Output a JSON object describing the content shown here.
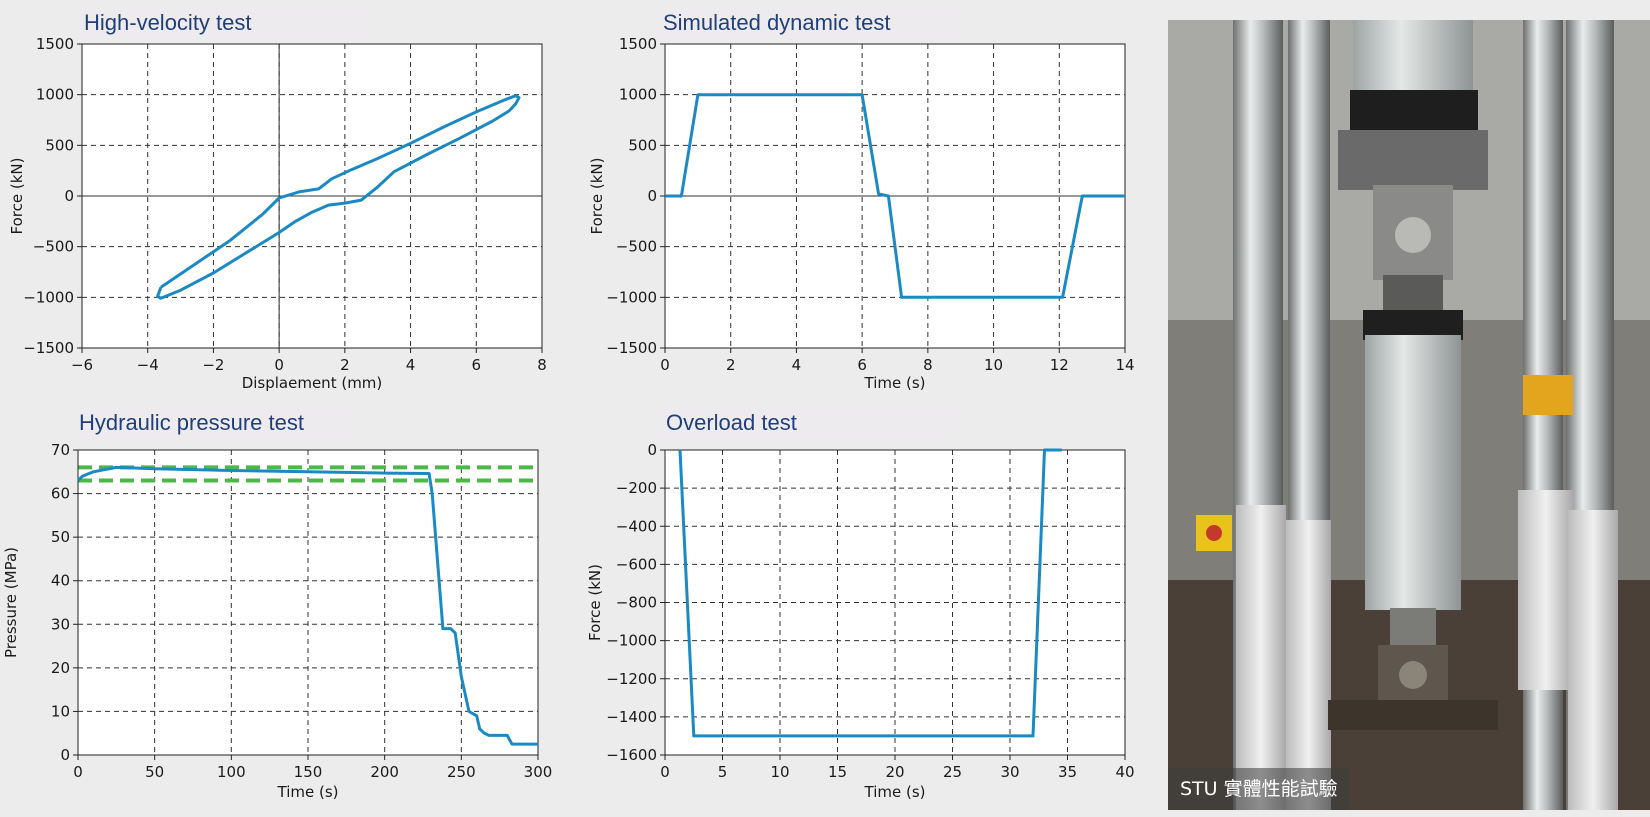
{
  "chart_data": [
    {
      "id": "high-velocity",
      "type": "line",
      "title": "High-velocity test",
      "xlabel": "Displaement (mm)",
      "ylabel": "Force (kN)",
      "xlim": [
        -6,
        8
      ],
      "ylim": [
        -1500,
        1500
      ],
      "xticks": [
        -6,
        -4,
        -2,
        0,
        2,
        4,
        6,
        8
      ],
      "yticks": [
        -1500,
        -1000,
        -500,
        0,
        500,
        1000,
        1500
      ],
      "grid": true,
      "color": "#1b8ac4",
      "series": [
        {
          "x": [
            -3.6,
            -2.5,
            -1.5,
            -0.5,
            0,
            0.6,
            1.2,
            1.6,
            2.2,
            3.0,
            4.0,
            5.0,
            6.0,
            6.8,
            7.2,
            7.3,
            7.2,
            7.0,
            6.5,
            5.5,
            4.5,
            3.5,
            3.0,
            2.5,
            2.0,
            1.5,
            1.0,
            0.5,
            0.0,
            -1.0,
            -2.0,
            -3.0,
            -3.6,
            -3.7,
            -3.6
          ],
          "y": [
            -900,
            -660,
            -440,
            -180,
            -20,
            40,
            70,
            170,
            260,
            370,
            520,
            680,
            830,
            940,
            990,
            970,
            910,
            840,
            740,
            570,
            410,
            240,
            90,
            -40,
            -70,
            -90,
            -160,
            -250,
            -360,
            -560,
            -760,
            -930,
            -1010,
            -990,
            -900
          ]
        }
      ]
    },
    {
      "id": "simulated-dynamic",
      "type": "line",
      "title": "Simulated dynamic test",
      "xlabel": "Time (s)",
      "ylabel": "Force (kN)",
      "xlim": [
        0,
        14
      ],
      "ylim": [
        -1500,
        1500
      ],
      "xticks": [
        0,
        2,
        4,
        6,
        8,
        10,
        12,
        14
      ],
      "yticks": [
        -1500,
        -1000,
        -500,
        0,
        500,
        1000,
        1500
      ],
      "grid": true,
      "color": "#1b8ac4",
      "series": [
        {
          "x": [
            0,
            0.5,
            1.0,
            6.0,
            6.5,
            6.8,
            7.2,
            12.1,
            12.7,
            14
          ],
          "y": [
            0,
            0,
            1000,
            1000,
            20,
            0,
            -1000,
            -1000,
            0,
            0
          ]
        }
      ]
    },
    {
      "id": "hydraulic-pressure",
      "type": "line",
      "title": "Hydraulic pressure test",
      "xlabel": "Time (s)",
      "ylabel": "Pressure (MPa)",
      "xlim": [
        0,
        300
      ],
      "ylim": [
        0,
        70
      ],
      "xticks": [
        0,
        50,
        100,
        150,
        200,
        250,
        300
      ],
      "yticks": [
        0,
        10,
        20,
        30,
        40,
        50,
        60,
        70
      ],
      "grid": true,
      "color": "#1b8ac4",
      "reference_color": "#4cb848",
      "reference_lines": [
        66,
        63
      ],
      "series": [
        {
          "x": [
            0,
            3,
            10,
            25,
            50,
            100,
            150,
            200,
            229,
            231,
            238,
            243,
            246,
            250,
            255,
            260,
            262,
            265,
            268,
            275,
            280,
            283,
            290,
            300
          ],
          "y": [
            63,
            64,
            65,
            66,
            65.7,
            65.3,
            65,
            64.7,
            64.6,
            60,
            29,
            29,
            28,
            18,
            10,
            9,
            6,
            5,
            4.5,
            4.5,
            4.5,
            2.5,
            2.5,
            2.5
          ]
        }
      ]
    },
    {
      "id": "overload",
      "type": "line",
      "title": "Overload test",
      "xlabel": "Time (s)",
      "ylabel": "Force (kN)",
      "xlim": [
        0,
        40
      ],
      "ylim": [
        -1600,
        0
      ],
      "xticks": [
        0,
        5,
        10,
        15,
        20,
        25,
        30,
        35,
        40
      ],
      "yticks": [
        -1600,
        -1400,
        -1200,
        -1000,
        -800,
        -600,
        -400,
        -200,
        0
      ],
      "grid": true,
      "color": "#1b8ac4",
      "series": [
        {
          "x": [
            1.3,
            2.5,
            32.0,
            33.0,
            34.5
          ],
          "y": [
            0,
            -1500,
            -1500,
            0,
            0
          ]
        }
      ]
    }
  ],
  "photo": {
    "caption": "STU 實體性能試驗"
  }
}
